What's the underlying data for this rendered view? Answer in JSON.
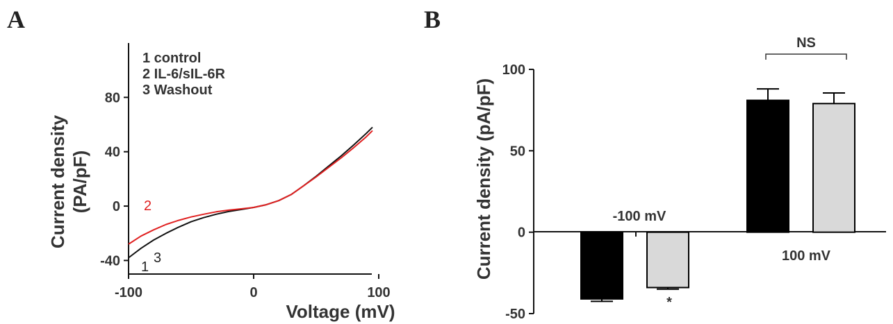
{
  "panel_a_letter": "A",
  "panel_b_letter": "B",
  "chart_data": [
    {
      "type": "line",
      "xlabel": "Voltage (mV)",
      "ylabel_line1": "Current density",
      "ylabel_line2": "(PA/pF)",
      "xlim": [
        -100,
        100
      ],
      "ylim": [
        -50,
        120
      ],
      "x_ticks": [
        -100,
        0,
        100
      ],
      "x_tick_labels": [
        "-100",
        "0",
        "100"
      ],
      "y_ticks": [
        -40,
        0,
        40,
        80
      ],
      "y_tick_labels": [
        "-40",
        "0",
        "40",
        "80"
      ],
      "legend": [
        "1  control",
        "2  IL-6/sIL-6R",
        "3  Washout"
      ],
      "curve_labels": {
        "one": "1",
        "two": "2",
        "three": "3"
      },
      "series": [
        {
          "name": "1",
          "color": "#111111",
          "x": [
            -100,
            -90,
            -80,
            -70,
            -60,
            -50,
            -40,
            -30,
            -20,
            -10,
            0,
            10,
            20,
            30,
            40,
            50,
            60,
            70,
            80,
            90,
            95
          ],
          "y": [
            -38,
            -31,
            -25,
            -20,
            -15.5,
            -11.5,
            -8.5,
            -6,
            -4,
            -2.5,
            -1,
            1,
            4,
            8.5,
            15,
            22,
            29.5,
            37,
            45,
            53.5,
            58
          ]
        },
        {
          "name": "2",
          "color": "#e02020",
          "x": [
            -100,
            -90,
            -80,
            -70,
            -60,
            -50,
            -40,
            -30,
            -20,
            -10,
            0,
            10,
            20,
            30,
            40,
            50,
            60,
            70,
            80,
            90,
            95
          ],
          "y": [
            -28,
            -22,
            -17.5,
            -13.5,
            -10.5,
            -8,
            -6,
            -4.2,
            -3,
            -2,
            -1,
            1,
            4,
            8.5,
            15,
            21.5,
            28.5,
            35.5,
            43,
            51,
            55.5
          ]
        }
      ]
    },
    {
      "type": "bar",
      "ylabel": "Current density (pA/pF)",
      "ylim": [
        -50,
        100
      ],
      "y_ticks": [
        -50,
        0,
        50,
        100
      ],
      "y_tick_labels": [
        "-50",
        "0",
        "50",
        "100"
      ],
      "categories": [
        "-100 mV",
        "100 mV"
      ],
      "series": [
        {
          "color": "#000000",
          "values": [
            -41,
            81
          ],
          "errors": [
            1.5,
            7
          ]
        },
        {
          "color": "#d9d9d9",
          "values": [
            -34,
            79
          ],
          "errors": [
            1,
            6.5
          ]
        }
      ],
      "annotations": {
        "significance": "*",
        "bracket_label": "NS"
      }
    }
  ]
}
